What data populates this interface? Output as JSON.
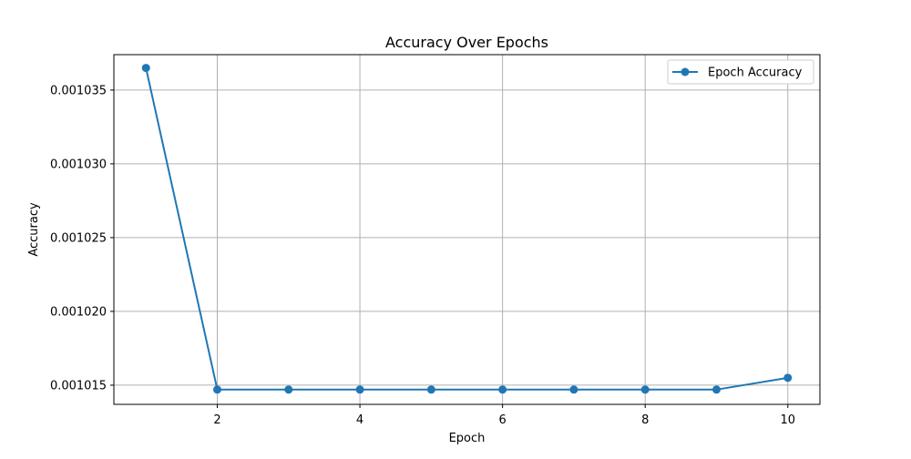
{
  "chart_data": {
    "type": "line",
    "title": "Accuracy Over Epochs",
    "xlabel": "Epoch",
    "ylabel": "Accuracy",
    "xlim": [
      0.55,
      10.45
    ],
    "ylim": [
      0.0010137,
      0.0010374
    ],
    "xticks": [
      2,
      4,
      6,
      8,
      10
    ],
    "xtick_labels": [
      "2",
      "4",
      "6",
      "8",
      "10"
    ],
    "yticks": [
      0.001015,
      0.00102,
      0.001025,
      0.00103,
      0.001035
    ],
    "ytick_labels": [
      "0.001015",
      "0.001020",
      "0.001025",
      "0.001030",
      "0.001035"
    ],
    "grid": true,
    "legend_position": "top-right",
    "series": [
      {
        "name": "Epoch Accuracy",
        "color": "#1f77b4",
        "marker": "circle",
        "x": [
          1,
          2,
          3,
          4,
          5,
          6,
          7,
          8,
          9,
          10
        ],
        "y": [
          0.0010365,
          0.0010147,
          0.0010147,
          0.0010147,
          0.0010147,
          0.0010147,
          0.0010147,
          0.0010147,
          0.0010147,
          0.0010155
        ]
      }
    ]
  }
}
